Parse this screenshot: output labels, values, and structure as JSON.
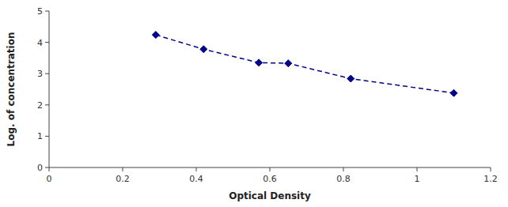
{
  "chart_data": {
    "type": "line",
    "x": [
      0.29,
      0.42,
      0.57,
      0.65,
      0.82,
      1.1
    ],
    "values": [
      4.24,
      3.78,
      3.35,
      3.33,
      2.84,
      2.38
    ],
    "color": "#00008B",
    "marker": "diamond",
    "line_style": "dashed",
    "xlabel": "Optical Density",
    "ylabel": "Log. of concentration",
    "xlim": [
      0,
      1.2
    ],
    "ylim": [
      0,
      5
    ],
    "xticks": [
      0,
      0.2,
      0.4,
      0.6,
      0.8,
      1,
      1.2
    ],
    "yticks": [
      0,
      1,
      2,
      3,
      4,
      5
    ],
    "grid": false
  }
}
